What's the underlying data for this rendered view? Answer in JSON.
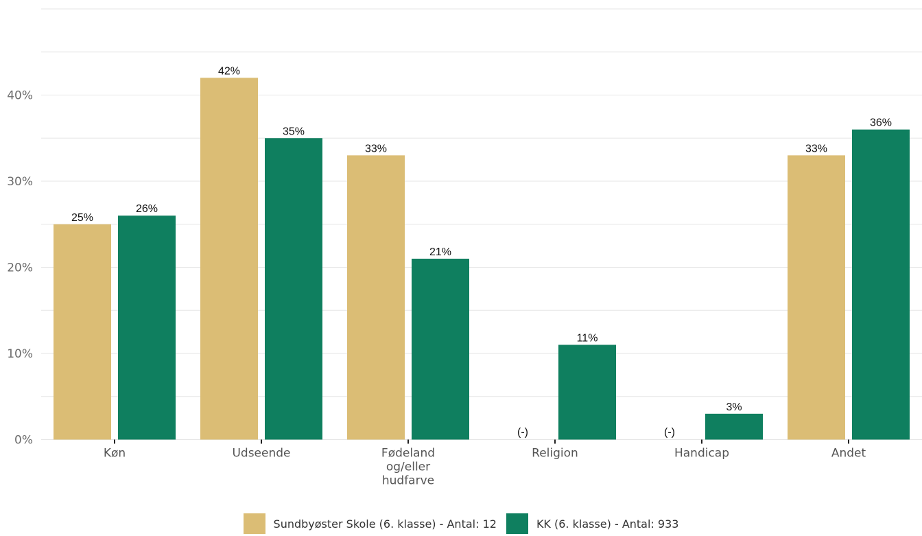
{
  "chart_data": {
    "type": "bar",
    "categories": [
      [
        "Køn"
      ],
      [
        "Udseende"
      ],
      [
        "Fødeland",
        "og/eller",
        "hudfarve"
      ],
      [
        "Religion"
      ],
      [
        "Handicap"
      ],
      [
        "Andet"
      ]
    ],
    "series": [
      {
        "name": "Sundbyøster Skole (6. klasse) - Antal: 12",
        "color": "#dbbd75",
        "values": [
          25,
          42,
          33,
          null,
          null,
          33
        ],
        "labels": [
          "25%",
          "42%",
          "33%",
          "(-)",
          "(-)",
          "33%"
        ]
      },
      {
        "name": "KK (6. klasse) - Antal: 933",
        "color": "#0f7f5f",
        "values": [
          26,
          35,
          21,
          11,
          3,
          36
        ],
        "labels": [
          "26%",
          "35%",
          "21%",
          "11%",
          "3%",
          "36%"
        ]
      }
    ],
    "y_ticks": [
      "0%",
      "10%",
      "20%",
      "30%",
      "40%"
    ],
    "y_tick_values": [
      0,
      10,
      20,
      30,
      40
    ],
    "ylim": [
      0,
      50
    ],
    "grid": true,
    "legend_position": "bottom"
  }
}
